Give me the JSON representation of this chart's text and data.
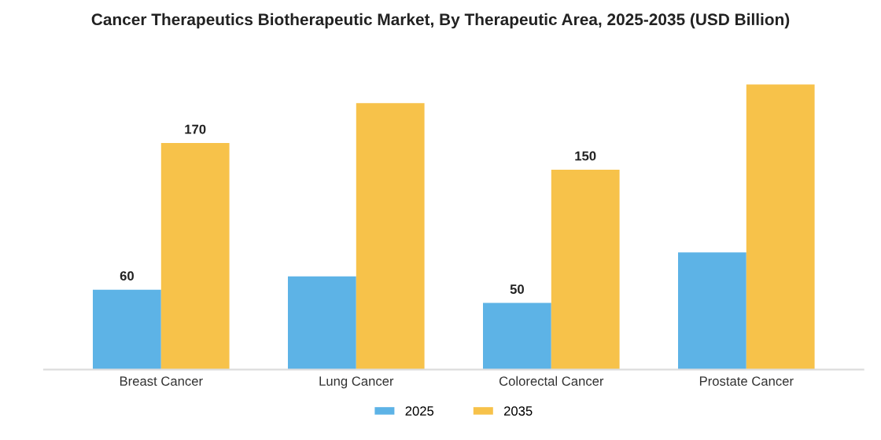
{
  "chart_data": {
    "type": "bar",
    "title": "Cancer Therapeutics Biotherapeutic Market, By Therapeutic Area, 2025-2035 (USD Billion)",
    "categories": [
      "Breast Cancer",
      "Lung Cancer",
      "Colorectal Cancer",
      "Prostate Cancer"
    ],
    "series": [
      {
        "name": "2025",
        "color": "#5db3e6",
        "values": [
          60,
          70,
          50,
          88
        ],
        "value_labels": [
          "60",
          null,
          "50",
          null
        ]
      },
      {
        "name": "2035",
        "color": "#f7c24a",
        "values": [
          170,
          200,
          150,
          214
        ],
        "value_labels": [
          "170",
          null,
          "150",
          null
        ]
      }
    ],
    "legend": "bottom",
    "grid": false
  }
}
